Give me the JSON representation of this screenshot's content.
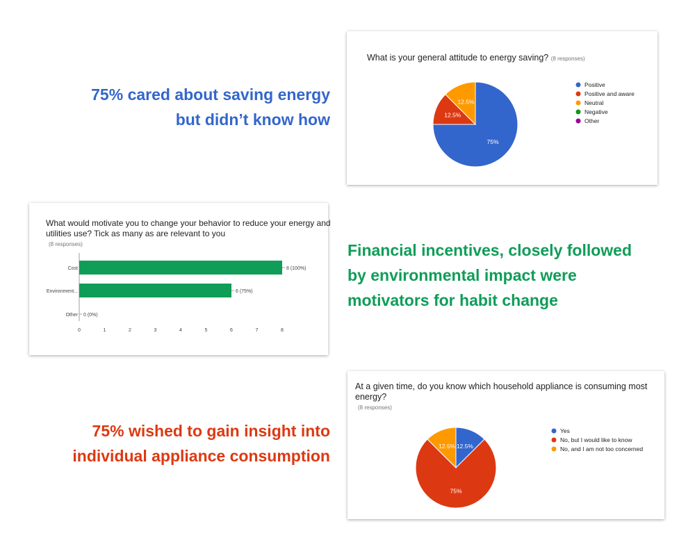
{
  "captions": {
    "c1": {
      "line1": "75% cared about saving energy",
      "line2": "but didn’t know how",
      "color": "#3366cc"
    },
    "c2": {
      "line1": "Financial incentives, closely followed",
      "line2": "by environmental impact were",
      "line3": "motivators for habit change",
      "color": "#0f9d58"
    },
    "c3": {
      "line1": "75% wished to gain insight into",
      "line2": "individual appliance consumption",
      "color": "#dc3912"
    }
  },
  "chart1": {
    "title": "What is your general attitude to energy saving?",
    "responses": "(8 responses)"
  },
  "chart2": {
    "title_line1": "What would motivate you to change your behavior to reduce your energy and",
    "title_line2": "utilities use? Tick as many as are relevant to you",
    "responses": "(8 responses)"
  },
  "chart3": {
    "title_line1": "At a given time, do you know which household appliance is consuming most",
    "title_line2": "energy?",
    "responses": "(8 responses)"
  },
  "chart_data": [
    {
      "type": "pie",
      "title": "What is your general attitude to energy saving?",
      "legend_position": "right",
      "slices": [
        {
          "label": "Positive",
          "value": 75,
          "display": "75%",
          "color": "#3366cc"
        },
        {
          "label": "Positive and aware",
          "value": 12.5,
          "display": "12.5%",
          "color": "#dc3912"
        },
        {
          "label": "Neutral",
          "value": 12.5,
          "display": "12.5%",
          "color": "#ff9900"
        },
        {
          "label": "Negative",
          "value": 0,
          "display": "",
          "color": "#109618"
        },
        {
          "label": "Other",
          "value": 0,
          "display": "",
          "color": "#990099"
        }
      ]
    },
    {
      "type": "bar",
      "orientation": "horizontal",
      "title": "What would motivate you to change your behavior to reduce your energy and utilities use? Tick as many as are relevant to you",
      "categories": [
        "Cost",
        "Environment...",
        "Other"
      ],
      "values": [
        8,
        6,
        0
      ],
      "value_labels": [
        "8 (100%)",
        "6 (75%)",
        "0 (0%)"
      ],
      "xlim": [
        0,
        8
      ],
      "xticks": [
        "0",
        "1",
        "2",
        "3",
        "4",
        "5",
        "6",
        "7",
        "8"
      ],
      "bar_color": "#0f9d58",
      "grid": false
    },
    {
      "type": "pie",
      "title": "At a given time, do you know which household appliance is consuming most energy?",
      "legend_position": "right",
      "slices": [
        {
          "label": "Yes",
          "value": 12.5,
          "display": "12.5%",
          "color": "#3366cc"
        },
        {
          "label": "No, but I would like to know",
          "value": 75,
          "display": "75%",
          "color": "#dc3912"
        },
        {
          "label": "No, and I am not too concerned",
          "value": 12.5,
          "display": "12.5%",
          "color": "#ff9900"
        }
      ]
    }
  ]
}
